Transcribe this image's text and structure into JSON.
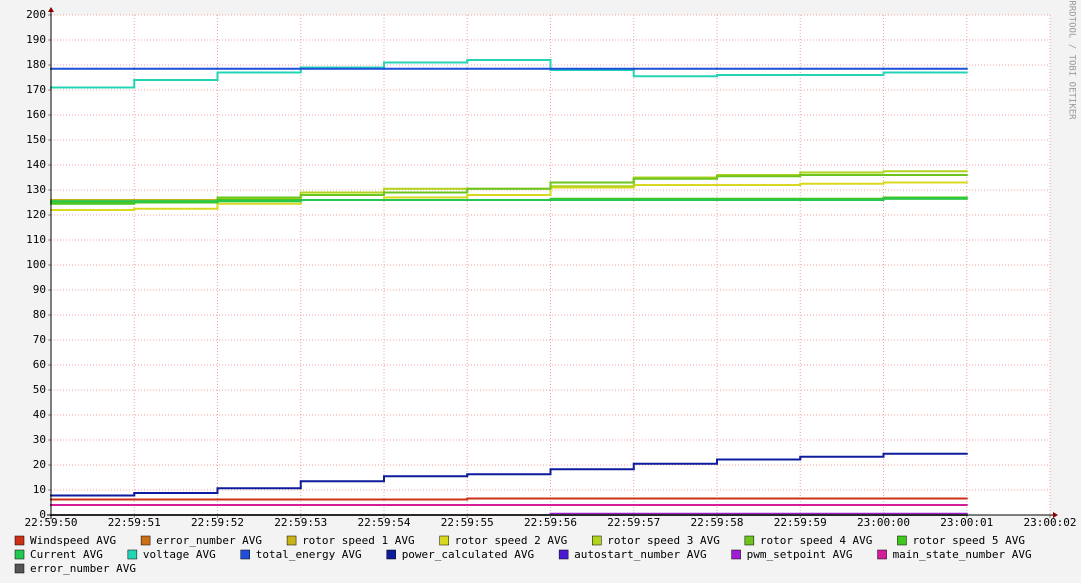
{
  "chart_data": {
    "type": "step",
    "watermark": "RRDTOOL / TOBI OETIKER",
    "x": [
      "22:59:50",
      "22:59:51",
      "22:59:52",
      "22:59:53",
      "22:59:54",
      "22:59:55",
      "22:59:56",
      "22:59:57",
      "22:59:58",
      "22:59:59",
      "23:00:00",
      "23:00:01",
      "23:00:02"
    ],
    "ylim": [
      0,
      200
    ],
    "yticks": [
      0,
      10,
      20,
      30,
      40,
      50,
      60,
      70,
      80,
      90,
      100,
      110,
      120,
      130,
      140,
      150,
      160,
      170,
      180,
      190,
      200
    ],
    "grid": true,
    "series": [
      {
        "name": "Windspeed AVG",
        "color": "#cc3118",
        "values": [
          6.2,
          6.2,
          6.2,
          6.2,
          6.2,
          6.6,
          6.6,
          6.6,
          6.6,
          6.6,
          6.6,
          null,
          null
        ]
      },
      {
        "name": "error_number AVG",
        "color": "#cc7016",
        "values": [
          0,
          0,
          0,
          0,
          0,
          0,
          0,
          0,
          0,
          0,
          0,
          null,
          null
        ]
      },
      {
        "name": "rotor speed 1 AVG",
        "color": "#c9b215",
        "values": [
          126,
          126,
          126,
          126,
          126,
          126,
          126,
          126,
          126,
          126,
          126.5,
          null,
          null
        ]
      },
      {
        "name": "rotor speed 2 AVG",
        "color": "#d8d81e",
        "values": [
          122,
          122.5,
          124.5,
          126,
          127,
          128,
          131,
          132,
          132,
          132.5,
          133,
          null,
          null
        ]
      },
      {
        "name": "rotor speed 3 AVG",
        "color": "#b0d41e",
        "values": [
          125,
          125.5,
          126.5,
          129,
          130.5,
          130.5,
          131.5,
          135,
          136,
          137,
          137.5,
          null,
          null
        ]
      },
      {
        "name": "rotor speed 4 AVG",
        "color": "#6cc51e",
        "values": [
          125,
          125.5,
          127,
          128,
          129,
          130.5,
          133,
          134.5,
          135.5,
          136,
          136,
          null,
          null
        ]
      },
      {
        "name": "rotor speed 5 AVG",
        "color": "#41c81e",
        "values": [
          124.5,
          125,
          126,
          126,
          126,
          126,
          126.5,
          126.5,
          126.5,
          126.5,
          127,
          null,
          null
        ]
      },
      {
        "name": "Current AVG",
        "color": "#24c851",
        "values": [
          125.5,
          125.5,
          125.5,
          126,
          126,
          126,
          126,
          126,
          126,
          126,
          126.5,
          null,
          null
        ]
      },
      {
        "name": "voltage AVG",
        "color": "#24d4b4",
        "values": [
          171,
          174,
          177,
          179,
          181,
          182,
          178,
          175.5,
          176,
          176,
          177,
          null,
          null
        ]
      },
      {
        "name": "total_energy AVG",
        "color": "#1d4fd8",
        "values": [
          178.5,
          178.5,
          178.5,
          178.5,
          178.5,
          178.5,
          178.5,
          178.5,
          178.5,
          178.5,
          178.5,
          null,
          null
        ]
      },
      {
        "name": "power_calculated AVG",
        "color": "#0d1c9c",
        "values": [
          7.8,
          8.8,
          10.7,
          13.5,
          15.5,
          16.3,
          18.3,
          20.5,
          22.2,
          23.3,
          24.5,
          null,
          null
        ]
      },
      {
        "name": "autostart_number AVG",
        "color": "#4a1ad2",
        "values": [
          0,
          0,
          0,
          0,
          0,
          0,
          0,
          0,
          0,
          0,
          0,
          null,
          null
        ]
      },
      {
        "name": "pwm_setpoint AVG",
        "color": "#a01dd3",
        "values": [
          0,
          0,
          0,
          0,
          0,
          0,
          0.5,
          0.5,
          0.5,
          0.5,
          0.5,
          null,
          null
        ]
      },
      {
        "name": "main_state_number AVG",
        "color": "#d41d9a",
        "values": [
          4,
          4,
          4,
          4,
          4,
          4,
          4,
          4,
          4,
          4,
          4,
          null,
          null
        ]
      },
      {
        "name": "error_number AVG",
        "color": "#555555",
        "values": [
          0,
          0,
          0,
          0,
          0,
          0,
          0,
          0,
          0,
          0,
          0,
          null,
          null
        ]
      }
    ]
  }
}
